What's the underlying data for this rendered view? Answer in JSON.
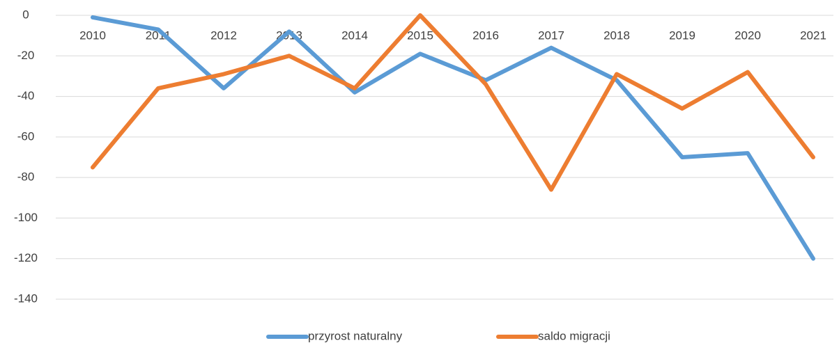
{
  "chart_data": {
    "type": "line",
    "categories": [
      "2010",
      "2011",
      "2012",
      "2013",
      "2014",
      "2015",
      "2016",
      "2017",
      "2018",
      "2019",
      "2020",
      "2021"
    ],
    "series": [
      {
        "name": "przyrost naturalny",
        "color": "#5b9bd5",
        "values": [
          -1,
          -7,
          -36,
          -8,
          -38,
          -19,
          -32,
          -16,
          -32,
          -70,
          -68,
          -120
        ]
      },
      {
        "name": "saldo migracji",
        "color": "#ed7d31",
        "values": [
          -75,
          -36,
          -29,
          -20,
          -36,
          0,
          -34,
          -86,
          -29,
          -46,
          -28,
          -70
        ]
      }
    ],
    "ylim": [
      -140,
      0
    ],
    "yticks": [
      0,
      -20,
      -40,
      -60,
      -80,
      -100,
      -120,
      -140
    ],
    "grid": true,
    "legend": "bottom"
  }
}
